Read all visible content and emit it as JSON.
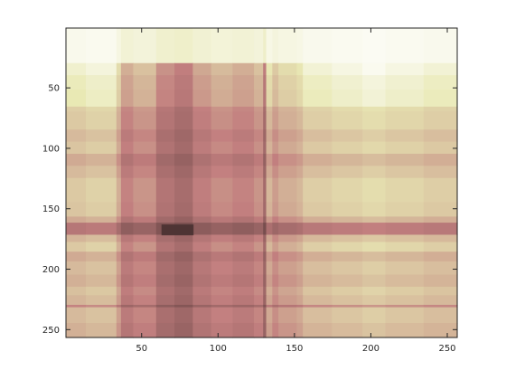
{
  "chart_data": {
    "type": "heatmap",
    "title": "",
    "xlabel": "",
    "ylabel": "",
    "xlim": [
      0.5,
      256.5
    ],
    "ylim": [
      0.5,
      256.5
    ],
    "y_direction": "reverse",
    "colormap": "pink",
    "grid": false,
    "legend": "none",
    "x_ticks": [
      50,
      100,
      150,
      200,
      250
    ],
    "x_tick_labels": [
      "50",
      "100",
      "150",
      "200",
      "250"
    ],
    "y_ticks": [
      50,
      100,
      150,
      200,
      250
    ],
    "y_tick_labels": [
      "50",
      "100",
      "150",
      "200",
      "250"
    ],
    "column_profile": {
      "description_of_axis": "column index (x)",
      "bands": [
        {
          "x0": 1,
          "x1": 14,
          "value": 0.74
        },
        {
          "x0": 14,
          "x1": 34,
          "value": 0.78
        },
        {
          "x0": 34,
          "x1": 37,
          "value": 0.62
        },
        {
          "x0": 37,
          "x1": 45,
          "value": 0.46
        },
        {
          "x0": 45,
          "x1": 60,
          "value": 0.52
        },
        {
          "x0": 60,
          "x1": 72,
          "value": 0.38
        },
        {
          "x0": 72,
          "x1": 84,
          "value": 0.33
        },
        {
          "x0": 84,
          "x1": 96,
          "value": 0.44
        },
        {
          "x0": 96,
          "x1": 110,
          "value": 0.5
        },
        {
          "x0": 110,
          "x1": 124,
          "value": 0.46
        },
        {
          "x0": 124,
          "x1": 130,
          "value": 0.52
        },
        {
          "x0": 130,
          "x1": 132,
          "value": 0.32
        },
        {
          "x0": 132,
          "x1": 136,
          "value": 0.66
        },
        {
          "x0": 136,
          "x1": 140,
          "value": 0.55
        },
        {
          "x0": 140,
          "x1": 152,
          "value": 0.62
        },
        {
          "x0": 152,
          "x1": 156,
          "value": 0.66
        },
        {
          "x0": 156,
          "x1": 175,
          "value": 0.76
        },
        {
          "x0": 175,
          "x1": 195,
          "value": 0.8
        },
        {
          "x0": 195,
          "x1": 210,
          "value": 0.84
        },
        {
          "x0": 210,
          "x1": 235,
          "value": 0.8
        },
        {
          "x0": 235,
          "x1": 257,
          "value": 0.76
        }
      ]
    },
    "row_profile": {
      "description_of_axis": "row index (y)",
      "bands": [
        {
          "y0": 1,
          "y1": 30,
          "value": 0.98
        },
        {
          "y0": 30,
          "y1": 40,
          "value": 0.86
        },
        {
          "y0": 40,
          "y1": 52,
          "value": 0.8
        },
        {
          "y0": 52,
          "y1": 66,
          "value": 0.78
        },
        {
          "y0": 66,
          "y1": 70,
          "value": 0.66
        },
        {
          "y0": 70,
          "y1": 85,
          "value": 0.64
        },
        {
          "y0": 85,
          "y1": 95,
          "value": 0.58
        },
        {
          "y0": 95,
          "y1": 105,
          "value": 0.62
        },
        {
          "y0": 105,
          "y1": 115,
          "value": 0.52
        },
        {
          "y0": 115,
          "y1": 125,
          "value": 0.58
        },
        {
          "y0": 125,
          "y1": 145,
          "value": 0.64
        },
        {
          "y0": 145,
          "y1": 157,
          "value": 0.62
        },
        {
          "y0": 157,
          "y1": 162,
          "value": 0.52
        },
        {
          "y0": 162,
          "y1": 172,
          "value": 0.34
        },
        {
          "y0": 172,
          "y1": 178,
          "value": 0.56
        },
        {
          "y0": 178,
          "y1": 186,
          "value": 0.64
        },
        {
          "y0": 186,
          "y1": 194,
          "value": 0.52
        },
        {
          "y0": 194,
          "y1": 205,
          "value": 0.58
        },
        {
          "y0": 205,
          "y1": 215,
          "value": 0.54
        },
        {
          "y0": 215,
          "y1": 222,
          "value": 0.6
        },
        {
          "y0": 222,
          "y1": 230,
          "value": 0.56
        },
        {
          "y0": 230,
          "y1": 232,
          "value": 0.4
        },
        {
          "y0": 232,
          "y1": 245,
          "value": 0.58
        },
        {
          "y0": 245,
          "y1": 257,
          "value": 0.54
        }
      ]
    },
    "min_region": {
      "x0": 63,
      "x1": 84,
      "y0": 163,
      "y1": 172,
      "value": 0.05
    }
  }
}
